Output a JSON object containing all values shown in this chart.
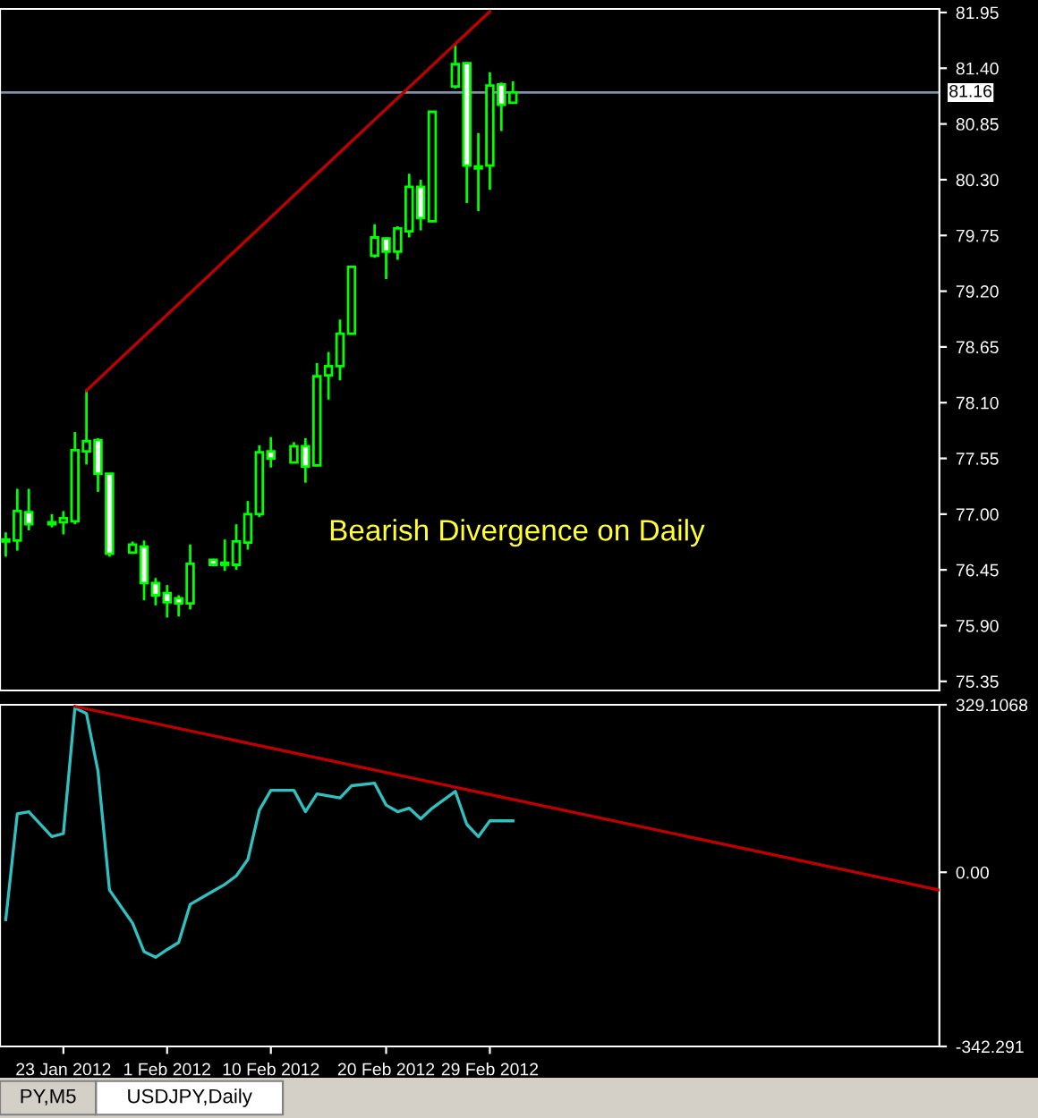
{
  "chart_data": [
    {
      "type": "candlestick",
      "color": "#00ff00",
      "xlim": [
        "2012-01-17T12:00",
        "2012-04-08"
      ],
      "ylim": [
        75.26,
        81.985
      ],
      "tick_labels": "y",
      "grid": false,
      "legend": false,
      "yticks": [
        {
          "value": 81.95,
          "label": "81.95"
        },
        {
          "value": 81.4,
          "label": "81.40"
        },
        {
          "value": 80.85,
          "label": "80.85"
        },
        {
          "value": 80.3,
          "label": "80.30"
        },
        {
          "value": 79.75,
          "label": "79.75"
        },
        {
          "value": 79.2,
          "label": "79.20"
        },
        {
          "value": 78.65,
          "label": "78.65"
        },
        {
          "value": 78.1,
          "label": "78.10"
        },
        {
          "value": 77.55,
          "label": "77.55"
        },
        {
          "value": 77,
          "label": "77.00"
        },
        {
          "value": 76.45,
          "label": "76.45"
        },
        {
          "value": 75.9,
          "label": "75.90"
        },
        {
          "value": 75.35,
          "label": "75.35"
        }
      ],
      "x": [
        "2012-01-18",
        "2012-01-19",
        "2012-01-20",
        "2012-01-22",
        "2012-01-23",
        "2012-01-24",
        "2012-01-25",
        "2012-01-26",
        "2012-01-27",
        "2012-01-29",
        "2012-01-30",
        "2012-01-31",
        "2012-02-01",
        "2012-02-02",
        "2012-02-03",
        "2012-02-05",
        "2012-02-06",
        "2012-02-07",
        "2012-02-08",
        "2012-02-09",
        "2012-02-10",
        "2012-02-12",
        "2012-02-13",
        "2012-02-14",
        "2012-02-15",
        "2012-02-16",
        "2012-02-17",
        "2012-02-19",
        "2012-02-20",
        "2012-02-21",
        "2012-02-22",
        "2012-02-23",
        "2012-02-24",
        "2012-02-26",
        "2012-02-27",
        "2012-02-28",
        "2012-02-29",
        "2012-03-01",
        "2012-03-02"
      ],
      "ohlc": [
        [
          76.73,
          76.82,
          76.58,
          76.75
        ],
        [
          76.74,
          77.25,
          76.64,
          77.03
        ],
        [
          77.02,
          77.25,
          76.84,
          76.9
        ],
        [
          76.9,
          77.0,
          76.87,
          76.92
        ],
        [
          76.92,
          77.03,
          76.8,
          76.96
        ],
        [
          76.93,
          77.81,
          76.9,
          77.63
        ],
        [
          77.62,
          78.23,
          77.49,
          77.72
        ],
        [
          77.73,
          77.75,
          77.22,
          77.4
        ],
        [
          77.4,
          77.4,
          76.58,
          76.61
        ],
        [
          76.62,
          76.73,
          76.61,
          76.7
        ],
        [
          76.68,
          76.74,
          76.15,
          76.32
        ],
        [
          76.32,
          76.37,
          76.1,
          76.2
        ],
        [
          76.22,
          76.3,
          75.98,
          76.13
        ],
        [
          76.17,
          76.2,
          75.99,
          76.12
        ],
        [
          76.12,
          76.7,
          76.06,
          76.51
        ],
        [
          76.55,
          76.56,
          76.49,
          76.5
        ],
        [
          76.5,
          76.75,
          76.44,
          76.52
        ],
        [
          76.5,
          76.9,
          76.45,
          76.73
        ],
        [
          76.72,
          77.13,
          76.65,
          77.0
        ],
        [
          77.0,
          77.68,
          76.97,
          77.61
        ],
        [
          77.62,
          77.76,
          77.46,
          77.55
        ],
        [
          77.51,
          77.71,
          77.51,
          77.67
        ],
        [
          77.67,
          77.75,
          77.31,
          77.47
        ],
        [
          77.48,
          78.49,
          77.47,
          78.36
        ],
        [
          78.37,
          78.6,
          78.13,
          78.46
        ],
        [
          78.46,
          78.92,
          78.32,
          78.78
        ],
        [
          78.78,
          79.45,
          78.77,
          79.44
        ],
        [
          79.55,
          79.86,
          79.53,
          79.73
        ],
        [
          79.72,
          79.73,
          79.32,
          79.59
        ],
        [
          79.59,
          79.84,
          79.51,
          79.82
        ],
        [
          79.79,
          80.36,
          79.73,
          80.23
        ],
        [
          80.23,
          80.3,
          79.8,
          79.92
        ],
        [
          79.89,
          80.98,
          79.88,
          80.97
        ],
        [
          81.22,
          81.64,
          81.2,
          81.44
        ],
        [
          81.45,
          81.46,
          80.07,
          80.44
        ],
        [
          80.41,
          80.76,
          79.99,
          80.43
        ],
        [
          80.44,
          81.36,
          80.2,
          81.23
        ],
        [
          81.24,
          81.26,
          80.78,
          81.04
        ],
        [
          81.06,
          81.27,
          81.05,
          81.16
        ]
      ],
      "series": [
        {
          "type": "line",
          "color": "#c00000",
          "x": [
            "2012-01-25",
            "2012-02-29"
          ],
          "values": [
            78.22,
            81.96
          ]
        }
      ],
      "ref_lines": [
        {
          "axis": "y",
          "value": 81.16,
          "label": "81.16",
          "color": "#8090a8"
        }
      ],
      "annotations": [
        "Bearish Divergence on Daily"
      ]
    },
    {
      "type": "line",
      "xlim": [
        "2012-01-17T12:00",
        "2012-04-08"
      ],
      "ylim": [
        -342.291,
        329.1068
      ],
      "grid": false,
      "legend": false,
      "xticks": [
        {
          "value": "2012-01-23",
          "label": "23 Jan 2012"
        },
        {
          "value": "2012-02-01",
          "label": "1 Feb 2012"
        },
        {
          "value": "2012-02-10",
          "label": "10 Feb 2012"
        },
        {
          "value": "2012-02-20",
          "label": "20 Feb 2012"
        },
        {
          "value": "2012-02-29",
          "label": "29 Feb 2012"
        }
      ],
      "yticks": [
        {
          "value": 329.1068,
          "label": "329.1068"
        },
        {
          "value": 0,
          "label": "0.00"
        },
        {
          "value": -342.291,
          "label": "-342.291"
        }
      ],
      "series": [
        {
          "color": "#30c0c0",
          "x": [
            "2012-01-18",
            "2012-01-19",
            "2012-01-20",
            "2012-01-22",
            "2012-01-23",
            "2012-01-24",
            "2012-01-25",
            "2012-01-26",
            "2012-01-27",
            "2012-01-29",
            "2012-01-30",
            "2012-01-31",
            "2012-02-01",
            "2012-02-02",
            "2012-02-03",
            "2012-02-05",
            "2012-02-06",
            "2012-02-07",
            "2012-02-08",
            "2012-02-09",
            "2012-02-10",
            "2012-02-12",
            "2012-02-13",
            "2012-02-14",
            "2012-02-15",
            "2012-02-16",
            "2012-02-17",
            "2012-02-19",
            "2012-02-20",
            "2012-02-21",
            "2012-02-22",
            "2012-02-23",
            "2012-02-24",
            "2012-02-26",
            "2012-02-27",
            "2012-02-28",
            "2012-02-29",
            "2012-03-01",
            "2012-03-02"
          ],
          "values": [
            -93,
            115,
            119,
            70,
            76,
            323,
            312,
            199,
            -35,
            -100,
            -156,
            -167,
            -152,
            -138,
            -63,
            -37,
            -24,
            -7,
            25,
            122,
            161,
            161,
            119,
            154,
            150,
            146,
            170,
            175,
            132,
            119,
            126,
            105,
            126,
            159,
            94,
            70,
            101,
            101,
            101
          ]
        },
        {
          "color": "#c00000",
          "x": [
            "2012-01-24",
            "2012-04-08"
          ],
          "values": [
            326,
            -35
          ]
        }
      ],
      "annotations": [
        "PY,M5",
        "USDJPY,Daily"
      ]
    }
  ]
}
